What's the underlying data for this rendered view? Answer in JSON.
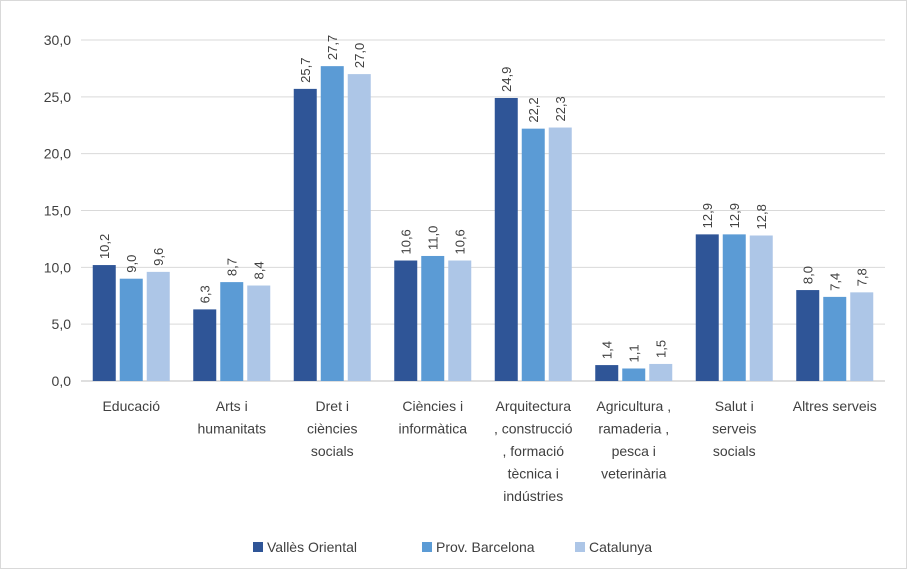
{
  "chart_data": {
    "type": "bar",
    "title": "",
    "xlabel": "",
    "ylabel": "",
    "ylim": [
      0,
      30
    ],
    "ytick_step": 5,
    "yticks": [
      "0,0",
      "5,0",
      "10,0",
      "15,0",
      "20,0",
      "25,0",
      "30,0"
    ],
    "grid": true,
    "legend_position": "bottom",
    "categories": [
      [
        "Educació"
      ],
      [
        "Arts i",
        "humanitats"
      ],
      [
        "Dret i",
        "ciències",
        "socials"
      ],
      [
        "Ciències i",
        "informàtica"
      ],
      [
        "Arquitectura",
        ", construcció",
        ", formació",
        "tècnica i",
        "indústries"
      ],
      [
        "Agricultura ,",
        "ramaderia ,",
        "pesca i",
        "veterinària"
      ],
      [
        "Salut i",
        "serveis",
        "socials"
      ],
      [
        "Altres serveis"
      ]
    ],
    "series": [
      {
        "name": "Vallès Oriental",
        "color": "#2f5597",
        "values": [
          10.2,
          6.3,
          25.7,
          10.6,
          24.9,
          1.4,
          12.9,
          8.0
        ],
        "labels": [
          "10,2",
          "6,3",
          "25,7",
          "10,6",
          "24,9",
          "1,4",
          "12,9",
          "8,0"
        ]
      },
      {
        "name": "Prov. Barcelona",
        "color": "#5b9bd5",
        "values": [
          9.0,
          8.7,
          27.7,
          11.0,
          22.2,
          1.1,
          12.9,
          7.4
        ],
        "labels": [
          "9,0",
          "8,7",
          "27,7",
          "11,0",
          "22,2",
          "1,1",
          "12,9",
          "7,4"
        ]
      },
      {
        "name": "Catalunya",
        "color": "#adc6e7",
        "values": [
          9.6,
          8.4,
          27.0,
          10.6,
          22.3,
          1.5,
          12.8,
          7.8
        ],
        "labels": [
          "9,6",
          "8,4",
          "27,0",
          "10,6",
          "22,3",
          "1,5",
          "12,8",
          "7,8"
        ]
      }
    ]
  }
}
